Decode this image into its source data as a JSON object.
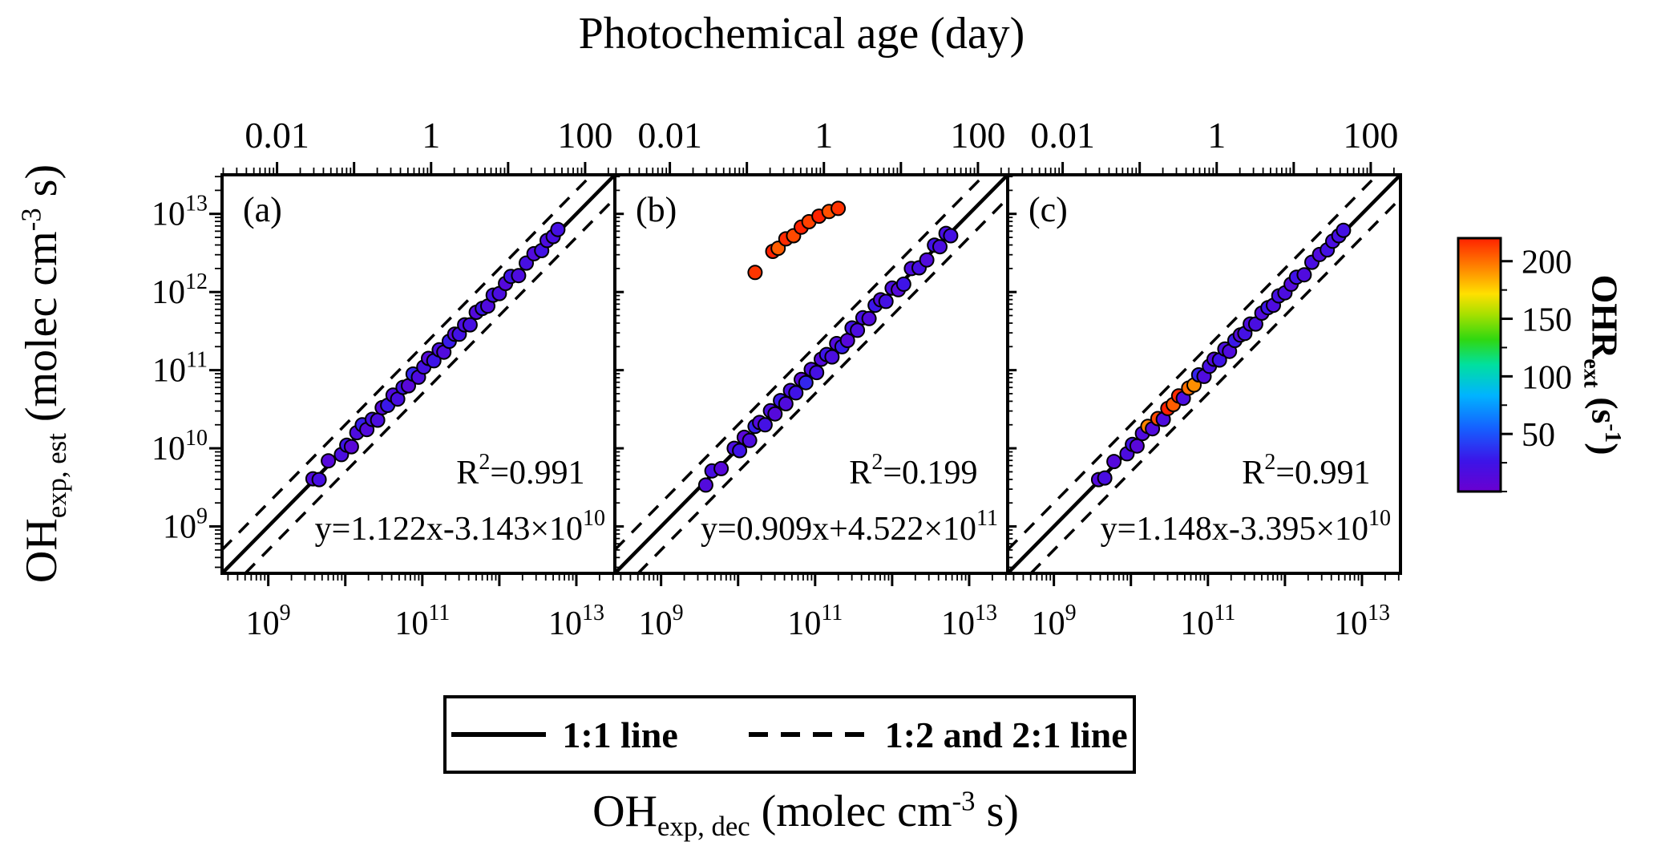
{
  "figure": {
    "top_axis_title": "Photochemical age (day)",
    "x_axis_title": {
      "prefix": "OH",
      "sub": "exp, dec",
      "mid": " (molec cm",
      "sup": "-3",
      "suffix": " s)"
    },
    "y_axis_title": {
      "prefix": "OH",
      "sub": "exp, est",
      "mid": " (molec cm",
      "sup": "-3",
      "suffix": " s)"
    },
    "colorbar_title": {
      "prefix": "OHR",
      "sub": "ext",
      "mid": " (s",
      "sup": "-1",
      "suffix": ")"
    },
    "legend": {
      "solid_label": "1:1 line",
      "dashed_label": "1:2 and 2:1 line"
    }
  },
  "chart_data": {
    "type": "scatter",
    "axes": {
      "log_min": 8.4,
      "log_max": 13.5,
      "x_major_ticks": [
        9,
        11,
        13
      ],
      "y_major_ticks": [
        9,
        10,
        11,
        12,
        13
      ],
      "age_ticks": [
        {
          "value": 0.01,
          "label": "0.01"
        },
        {
          "value": 1,
          "label": "1"
        },
        {
          "value": 100,
          "label": "100"
        }
      ],
      "age_to_exposure": 130000000000.0,
      "reference_lines": {
        "one_to_one": true,
        "ratio_offset_log10": 0.30103
      }
    },
    "colorbar": {
      "min": 0,
      "max": 220,
      "ticks": [
        50,
        100,
        150,
        200
      ],
      "minor_step": 25,
      "stops": [
        [
          0.0,
          "#6a00d0"
        ],
        [
          0.12,
          "#3c14e8"
        ],
        [
          0.25,
          "#1560ff"
        ],
        [
          0.38,
          "#00b4ff"
        ],
        [
          0.5,
          "#00e0a0"
        ],
        [
          0.6,
          "#30d810"
        ],
        [
          0.7,
          "#a8e000"
        ],
        [
          0.78,
          "#ffe000"
        ],
        [
          0.88,
          "#ff8800"
        ],
        [
          1.0,
          "#ff2200"
        ]
      ]
    },
    "points_format": "[log10 OHexp_dec, log10 OHexp_est, OHRext s-1]",
    "panels": [
      {
        "label": "(a)",
        "r2": {
          "prefix": "R",
          "sup": "2",
          "rest": "=0.991"
        },
        "fit": {
          "main": "y=1.122x-3.143×10",
          "power": "10"
        },
        "points": [
          [
            9.58,
            9.61,
            14
          ],
          [
            9.66,
            9.6,
            20
          ],
          [
            9.78,
            9.84,
            11
          ],
          [
            9.95,
            9.92,
            18
          ],
          [
            10.02,
            10.04,
            25
          ],
          [
            10.08,
            10.02,
            9
          ],
          [
            10.15,
            10.2,
            16
          ],
          [
            10.22,
            10.3,
            30
          ],
          [
            10.28,
            10.24,
            13
          ],
          [
            10.35,
            10.37,
            22
          ],
          [
            10.42,
            10.36,
            17
          ],
          [
            10.48,
            10.52,
            12
          ],
          [
            10.55,
            10.55,
            28
          ],
          [
            10.62,
            10.68,
            15
          ],
          [
            10.68,
            10.63,
            19
          ],
          [
            10.75,
            10.78,
            24
          ],
          [
            10.82,
            10.8,
            10
          ],
          [
            10.88,
            10.95,
            33
          ],
          [
            10.95,
            10.91,
            16
          ],
          [
            11.02,
            11.04,
            21
          ],
          [
            11.08,
            11.15,
            12
          ],
          [
            11.15,
            11.12,
            26
          ],
          [
            11.22,
            11.26,
            18
          ],
          [
            11.28,
            11.23,
            14
          ],
          [
            11.35,
            11.37,
            29
          ],
          [
            11.42,
            11.46,
            11
          ],
          [
            11.48,
            11.46,
            23
          ],
          [
            11.55,
            11.58,
            17
          ],
          [
            11.62,
            11.58,
            20
          ],
          [
            11.7,
            11.74,
            13
          ],
          [
            11.78,
            11.79,
            27
          ],
          [
            11.85,
            11.82,
            15
          ],
          [
            11.92,
            11.96,
            22
          ],
          [
            12.0,
            11.98,
            18
          ],
          [
            12.08,
            12.11,
            12
          ],
          [
            12.15,
            12.2,
            25
          ],
          [
            12.25,
            12.21,
            16
          ],
          [
            12.35,
            12.37,
            20
          ],
          [
            12.45,
            12.49,
            14
          ],
          [
            12.55,
            12.53,
            23
          ],
          [
            12.62,
            12.66,
            17
          ],
          [
            12.7,
            12.71,
            19
          ],
          [
            12.76,
            12.8,
            21
          ]
        ]
      },
      {
        "label": "(b)",
        "r2": {
          "prefix": "R",
          "sup": "2",
          "rest": "=0.199"
        },
        "fit": {
          "main": "y=0.909x+4.522×10",
          "power": "11"
        },
        "points": [
          [
            9.58,
            9.53,
            14
          ],
          [
            9.66,
            9.71,
            20
          ],
          [
            9.78,
            9.74,
            11
          ],
          [
            9.95,
            10.0,
            18
          ],
          [
            10.02,
            9.97,
            25
          ],
          [
            10.08,
            10.14,
            9
          ],
          [
            10.15,
            10.1,
            16
          ],
          [
            10.22,
            10.28,
            30
          ],
          [
            10.28,
            10.33,
            13
          ],
          [
            10.35,
            10.3,
            22
          ],
          [
            10.42,
            10.48,
            17
          ],
          [
            10.48,
            10.44,
            12
          ],
          [
            10.55,
            10.61,
            28
          ],
          [
            10.62,
            10.57,
            15
          ],
          [
            10.68,
            10.74,
            19
          ],
          [
            10.75,
            10.71,
            24
          ],
          [
            10.82,
            10.88,
            10
          ],
          [
            10.88,
            10.84,
            33
          ],
          [
            10.95,
            11.01,
            16
          ],
          [
            11.02,
            10.97,
            21
          ],
          [
            11.08,
            11.14,
            12
          ],
          [
            11.15,
            11.2,
            26
          ],
          [
            11.22,
            11.17,
            18
          ],
          [
            11.28,
            11.34,
            14
          ],
          [
            11.35,
            11.3,
            29
          ],
          [
            11.42,
            11.38,
            11
          ],
          [
            11.48,
            11.54,
            23
          ],
          [
            11.55,
            11.51,
            17
          ],
          [
            11.62,
            11.67,
            20
          ],
          [
            11.7,
            11.66,
            13
          ],
          [
            11.78,
            11.83,
            27
          ],
          [
            11.85,
            11.9,
            15
          ],
          [
            11.92,
            11.88,
            22
          ],
          [
            12.0,
            12.05,
            18
          ],
          [
            12.08,
            12.03,
            12
          ],
          [
            12.15,
            12.1,
            25
          ],
          [
            12.25,
            12.3,
            16
          ],
          [
            12.35,
            12.31,
            20
          ],
          [
            12.45,
            12.41,
            14
          ],
          [
            12.55,
            12.6,
            23
          ],
          [
            12.62,
            12.58,
            17
          ],
          [
            12.7,
            12.75,
            19
          ],
          [
            12.76,
            12.72,
            21
          ],
          [
            10.22,
            12.25,
            215
          ],
          [
            10.45,
            12.52,
            222
          ],
          [
            10.52,
            12.56,
            205
          ],
          [
            10.62,
            12.68,
            218
          ],
          [
            10.72,
            12.72,
            210
          ],
          [
            10.82,
            12.83,
            225
          ],
          [
            10.92,
            12.9,
            212
          ],
          [
            11.05,
            12.97,
            220
          ],
          [
            11.18,
            13.03,
            208
          ],
          [
            11.3,
            13.07,
            216
          ]
        ]
      },
      {
        "label": "(c)",
        "r2": {
          "prefix": "R",
          "sup": "2",
          "rest": "=0.991"
        },
        "fit": {
          "main": "y=1.148x-3.395×10",
          "power": "10"
        },
        "points": [
          [
            9.58,
            9.6,
            13
          ],
          [
            9.66,
            9.62,
            19
          ],
          [
            9.78,
            9.83,
            12
          ],
          [
            9.95,
            9.93,
            17
          ],
          [
            10.02,
            10.05,
            24
          ],
          [
            10.08,
            10.03,
            10
          ],
          [
            10.15,
            10.19,
            15
          ],
          [
            10.22,
            10.28,
            195
          ],
          [
            10.28,
            10.25,
            14
          ],
          [
            10.35,
            10.38,
            210
          ],
          [
            10.42,
            10.37,
            16
          ],
          [
            10.48,
            10.51,
            225
          ],
          [
            10.55,
            10.56,
            205
          ],
          [
            10.62,
            10.67,
            218
          ],
          [
            10.68,
            10.64,
            18
          ],
          [
            10.75,
            10.77,
            200
          ],
          [
            10.82,
            10.81,
            192
          ],
          [
            10.88,
            10.94,
            32
          ],
          [
            10.95,
            10.92,
            15
          ],
          [
            11.02,
            11.05,
            20
          ],
          [
            11.08,
            11.14,
            13
          ],
          [
            11.15,
            11.13,
            25
          ],
          [
            11.22,
            11.27,
            17
          ],
          [
            11.28,
            11.24,
            15
          ],
          [
            11.35,
            11.38,
            28
          ],
          [
            11.42,
            11.45,
            12
          ],
          [
            11.48,
            11.47,
            22
          ],
          [
            11.55,
            11.59,
            16
          ],
          [
            11.62,
            11.59,
            19
          ],
          [
            11.7,
            11.73,
            14
          ],
          [
            11.78,
            11.8,
            26
          ],
          [
            11.85,
            11.83,
            16
          ],
          [
            11.92,
            11.95,
            21
          ],
          [
            12.0,
            11.99,
            17
          ],
          [
            12.08,
            12.1,
            13
          ],
          [
            12.15,
            12.19,
            24
          ],
          [
            12.25,
            12.22,
            15
          ],
          [
            12.35,
            12.38,
            19
          ],
          [
            12.45,
            12.48,
            15
          ],
          [
            12.55,
            12.54,
            22
          ],
          [
            12.62,
            12.65,
            18
          ],
          [
            12.7,
            12.72,
            20
          ],
          [
            12.76,
            12.79,
            22
          ]
        ]
      }
    ]
  }
}
